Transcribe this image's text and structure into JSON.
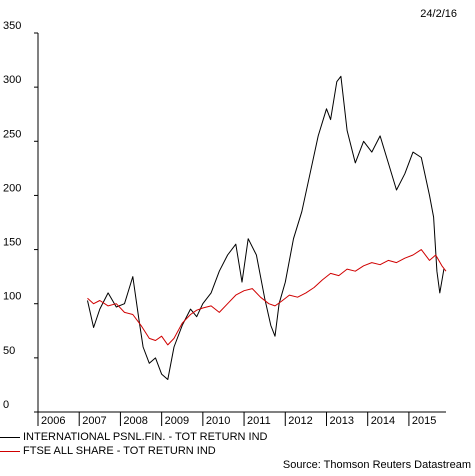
{
  "header": {
    "date": "24/2/16"
  },
  "footer": {
    "source": "Source: Thomson Reuters Datastream"
  },
  "chart_data": {
    "type": "line",
    "title": "",
    "xlabel": "",
    "ylabel": "",
    "xlim": [
      2006,
      2015.9
    ],
    "ylim": [
      0,
      350
    ],
    "x_ticks": [
      2006,
      2007,
      2008,
      2009,
      2010,
      2011,
      2012,
      2013,
      2014,
      2015
    ],
    "y_ticks": [
      0,
      50,
      100,
      150,
      200,
      250,
      300,
      350
    ],
    "grid": false,
    "legend_position": "bottom-left",
    "series": [
      {
        "name": "INTERNATIONAL PSNL.FIN. - TOT RETURN IND",
        "color": "#000000",
        "x": [
          2007.2,
          2007.35,
          2007.5,
          2007.7,
          2007.9,
          2008.1,
          2008.3,
          2008.45,
          2008.55,
          2008.7,
          2008.85,
          2009.0,
          2009.15,
          2009.3,
          2009.5,
          2009.7,
          2009.85,
          2010.0,
          2010.2,
          2010.4,
          2010.6,
          2010.8,
          2010.95,
          2011.1,
          2011.3,
          2011.5,
          2011.65,
          2011.75,
          2011.85,
          2012.0,
          2012.2,
          2012.4,
          2012.6,
          2012.8,
          2013.0,
          2013.1,
          2013.25,
          2013.35,
          2013.5,
          2013.7,
          2013.9,
          2014.1,
          2014.3,
          2014.5,
          2014.7,
          2014.9,
          2015.1,
          2015.3,
          2015.5,
          2015.6,
          2015.68,
          2015.75,
          2015.85
        ],
        "y": [
          103,
          78,
          95,
          110,
          97,
          100,
          125,
          85,
          60,
          45,
          50,
          35,
          30,
          60,
          80,
          95,
          88,
          100,
          110,
          130,
          145,
          155,
          120,
          160,
          145,
          105,
          80,
          70,
          100,
          120,
          160,
          185,
          220,
          255,
          280,
          270,
          305,
          310,
          260,
          230,
          250,
          240,
          255,
          230,
          205,
          220,
          240,
          235,
          200,
          180,
          130,
          110,
          132
        ]
      },
      {
        "name": "FTSE ALL SHARE - TOT RETURN IND",
        "color": "#d00000",
        "x": [
          2007.2,
          2007.35,
          2007.5,
          2007.7,
          2007.9,
          2008.1,
          2008.3,
          2008.5,
          2008.7,
          2008.85,
          2009.0,
          2009.15,
          2009.3,
          2009.5,
          2009.7,
          2009.85,
          2010.0,
          2010.2,
          2010.4,
          2010.6,
          2010.8,
          2011.0,
          2011.2,
          2011.4,
          2011.6,
          2011.75,
          2011.9,
          2012.1,
          2012.3,
          2012.5,
          2012.7,
          2012.9,
          2013.1,
          2013.3,
          2013.5,
          2013.7,
          2013.9,
          2014.1,
          2014.3,
          2014.5,
          2014.7,
          2014.9,
          2015.1,
          2015.3,
          2015.5,
          2015.65,
          2015.8,
          2015.9
        ],
        "y": [
          105,
          100,
          103,
          98,
          100,
          92,
          90,
          80,
          68,
          66,
          70,
          62,
          68,
          82,
          90,
          94,
          96,
          98,
          92,
          100,
          108,
          112,
          114,
          106,
          100,
          98,
          102,
          108,
          106,
          110,
          115,
          122,
          128,
          126,
          132,
          130,
          135,
          138,
          136,
          140,
          138,
          142,
          145,
          150,
          140,
          145,
          135,
          130
        ]
      }
    ]
  }
}
